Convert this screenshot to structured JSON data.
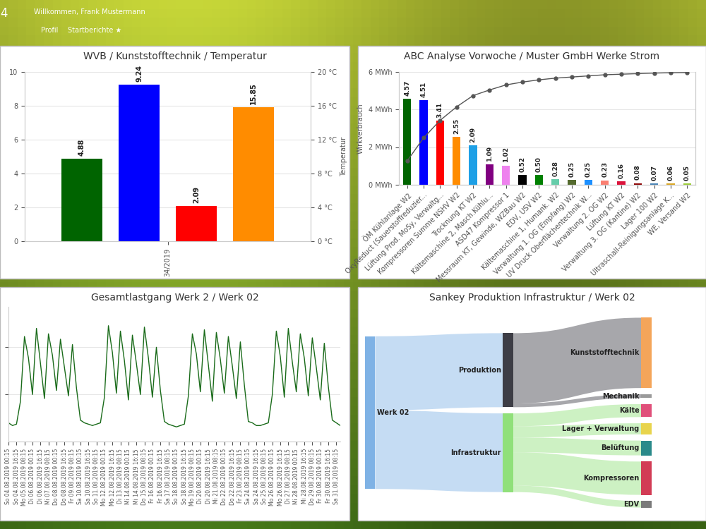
{
  "header": {
    "logo": "4",
    "welcome": "Willkommen, Frank Mustermann",
    "nav": [
      "Profil",
      "Startberichte ★"
    ]
  },
  "chart_data": [
    {
      "type": "bar",
      "title": "WVB / Kunststofftechnik / Temperatur",
      "categories": [
        "34/2019"
      ],
      "series": [
        {
          "color": "#006400",
          "values": [
            4.88
          ]
        },
        {
          "color": "#0000ff",
          "values": [
            9.24
          ]
        },
        {
          "color": "#ff0000",
          "values": [
            2.09
          ]
        },
        {
          "color": "#ff8c00",
          "values": [
            15.85
          ],
          "axis": "y2"
        }
      ],
      "ylim": [
        0,
        10
      ],
      "yticks": [
        0,
        2,
        4,
        6,
        8,
        10
      ],
      "y2lim": [
        0,
        20
      ],
      "y2ticks": [
        {
          "value": 0,
          "label": "0 °C"
        },
        {
          "value": 4,
          "label": "4 °C"
        },
        {
          "value": 8,
          "label": "8 °C"
        },
        {
          "value": 12,
          "label": "12 °C"
        },
        {
          "value": 16,
          "label": "16 °C"
        },
        {
          "value": 20,
          "label": "20 °C"
        }
      ],
      "y2label": "Temperatur",
      "grid": true,
      "data_labels": true
    },
    {
      "type": "bar",
      "title": "ABC Analyse Vorwoche / Muster GmbH Werke Strom",
      "categories": [
        "ÖM Kühlanlage W2",
        "OxyReduct (Sauerstoffreduzier...",
        "Lüftung Prod. MoSy, Verwaltg...",
        "Kompressoren Summe NSHV W2",
        "Trocknung KT W2",
        "Kältemaschine 2, Masch.Kühlu...",
        "ASD47 Kompressor 1",
        "Messraum KT, Gewinde, WZBau W2",
        "EDV, USV W2",
        "Kältemaschine 1, Humank. W2",
        "Verwaltung 1. OG (Empfang) W2",
        "UV Druck Oberflächentechnik W...",
        "Verwaltung 2. OG W2",
        "Lüftung KT W2",
        "Verwaltung 3. OG (Kantine) W2",
        "Lager 100 W2",
        "Ultraschall-Reinigungsanlage K...",
        "WE, Versand W2"
      ],
      "series": [
        {
          "type": "bar",
          "colors": [
            "#006400",
            "#0000ff",
            "#ff0000",
            "#ff8c00",
            "#1ea0e6",
            "#800080",
            "#ee82ee",
            "#000000",
            "#008000",
            "#66cdaa",
            "#556b2f",
            "#1e90ff",
            "#fa8072",
            "#dc143c",
            "#8b0000",
            "#4682b4",
            "#daa520",
            "#9acd32"
          ],
          "values": [
            4.57,
            4.51,
            3.41,
            2.55,
            2.09,
            1.09,
            1.02,
            0.52,
            0.5,
            0.28,
            0.25,
            0.25,
            0.23,
            0.16,
            0.08,
            0.07,
            0.06,
            0.05
          ],
          "value_labels": [
            "4.57",
            "4.51",
            "3.41",
            "2.55",
            "2.09",
            "1.09",
            "1.02",
            "0.52",
            "0.50",
            "0.28",
            "0.25",
            "0.25",
            "0.23",
            "0.16",
            "0.08",
            "0.07",
            "0.06",
            "0.05"
          ]
        },
        {
          "type": "line",
          "axis": "y2",
          "color": "#555555",
          "marker": "circle",
          "values": [
            21,
            41.5,
            57,
            69,
            79,
            84,
            88.5,
            91,
            93,
            94.5,
            95.5,
            96.5,
            97.5,
            98,
            98.5,
            99,
            99.3,
            99.5
          ]
        }
      ],
      "ylabel": "Wirkverbrauch",
      "ylim": [
        0,
        6
      ],
      "yticks": [
        {
          "value": 0,
          "label": "0 MWh"
        },
        {
          "value": 2,
          "label": "2 MWh"
        },
        {
          "value": 4,
          "label": "4 MWh"
        },
        {
          "value": 6,
          "label": "6 MWh"
        }
      ],
      "y2lim": [
        0,
        100
      ],
      "grid": true,
      "data_labels": true
    },
    {
      "type": "line",
      "title": "Gesamtlastgang Werk 2 / Werk 02",
      "color": "#1a6b1a",
      "categories": [
        "So 04.08.2019 00:15",
        null,
        "So 04.08.2019 16:15",
        null,
        "Mo 05.08.2019 08:15",
        null,
        "Di 06.08.2019 00:15",
        null,
        "Di 06.08.2019 16:15",
        null,
        "Mi 07.08.2019 08:15",
        null,
        "Do 08.08.2019 00:15",
        null,
        "Do 08.08.2019 16:15",
        null,
        "Fr 09.08.2019 08:15",
        null,
        "Sa 10.08.2019 00:15",
        null,
        "Sa 10.08.2019 16:15",
        null,
        "So 11.08.2019 08:15",
        null,
        "Mo 12.08.2019 00:15",
        null,
        "Mo 12.08.2019 16:15",
        null,
        "Di 13.08.2019 08:15",
        null,
        "Mi 14.08.2019 00:15",
        null,
        "Mi 14.08.2019 16:15",
        null,
        "Do 15.08.2019 08:15",
        null,
        "Fr 16.08.2019 00:15",
        null,
        "Fr 16.08.2019 16:15",
        null,
        "Sa 17.08.2019 08:15",
        null,
        "So 18.08.2019 00:15",
        null,
        "So 18.08.2019 16:15",
        null,
        "Mo 19.08.2019 08:15",
        null,
        "Di 20.08.2019 00:15",
        null,
        "Di 20.08.2019 16:15",
        null,
        "Mi 21.08.2019 08:15",
        null,
        "Do 22.08.2019 00:15",
        null,
        "Do 22.08.2019 16:15",
        null,
        "Fr 23.08.2019 08:15",
        null,
        "Sa 24.08.2019 00:15",
        null,
        "Sa 24.08.2019 16:15",
        null,
        "So 25.08.2019 08:15",
        null,
        "Mo 26.08.2019 00:15",
        null,
        "Mo 26.08.2019 16:15",
        null,
        "Di 27.08.2019 08:15",
        null,
        "Mi 28.08.2019 00:15",
        null,
        "Mi 28.08.2019 16:15",
        null,
        "Do 29.08.2019 08:15",
        null,
        "Fr 30.08.2019 00:15",
        null,
        "Fr 30.08.2019 16:15",
        null,
        "Sa 31.08.2019 08:15",
        null
      ],
      "values": [
        14,
        12,
        13,
        30,
        78,
        62,
        35,
        84,
        58,
        32,
        80,
        64,
        38,
        76,
        55,
        34,
        72,
        40,
        16,
        14,
        13,
        12,
        13,
        14,
        33,
        86,
        66,
        36,
        82,
        60,
        31,
        79,
        58,
        35,
        85,
        62,
        33,
        70,
        38,
        15,
        13,
        12,
        11,
        12,
        13,
        34,
        80,
        65,
        37,
        83,
        57,
        30,
        81,
        61,
        36,
        78,
        56,
        32,
        74,
        42,
        15,
        14,
        12,
        12,
        13,
        14,
        35,
        82,
        63,
        33,
        84,
        59,
        37,
        80,
        62,
        34,
        77,
        55,
        31,
        73,
        41,
        16,
        14,
        12
      ],
      "ylim": [
        0,
        100
      ],
      "yticks": [
        35,
        70
      ],
      "tick_labels": "x",
      "grid": true
    },
    {
      "type": "sankey",
      "title": "Sankey Produktion Infrastruktur / Werk 02",
      "nodes": [
        {
          "label": "Werk 02",
          "color": "#7fb2e5"
        },
        {
          "label": "Produktion",
          "color": "#3d3d45"
        },
        {
          "label": "Infrastruktur",
          "color": "#90e07a"
        },
        {
          "label": "Kunststofftechnik",
          "color": "#f4a55a"
        },
        {
          "label": "Mechanik",
          "color": "#9a9a9a"
        },
        {
          "label": "Kälte",
          "color": "#e0507a"
        },
        {
          "label": "Lager + Verwaltung",
          "color": "#e8d44d"
        },
        {
          "label": "Belüftung",
          "color": "#2a8a8a"
        },
        {
          "label": "Kompressoren",
          "color": "#d23c55"
        },
        {
          "label": "EDV",
          "color": "#7a7a7a"
        }
      ],
      "links": [
        {
          "source": 0,
          "target": 1,
          "value": 8.0
        },
        {
          "source": 0,
          "target": 2,
          "value": 8.5
        },
        {
          "source": 1,
          "target": 3,
          "value": 7.6
        },
        {
          "source": 1,
          "target": 4,
          "value": 0.4
        },
        {
          "source": 2,
          "target": 5,
          "value": 1.4
        },
        {
          "source": 2,
          "target": 6,
          "value": 1.2
        },
        {
          "source": 2,
          "target": 7,
          "value": 1.6
        },
        {
          "source": 2,
          "target": 8,
          "value": 3.6
        },
        {
          "source": 2,
          "target": 9,
          "value": 0.7
        }
      ]
    }
  ]
}
